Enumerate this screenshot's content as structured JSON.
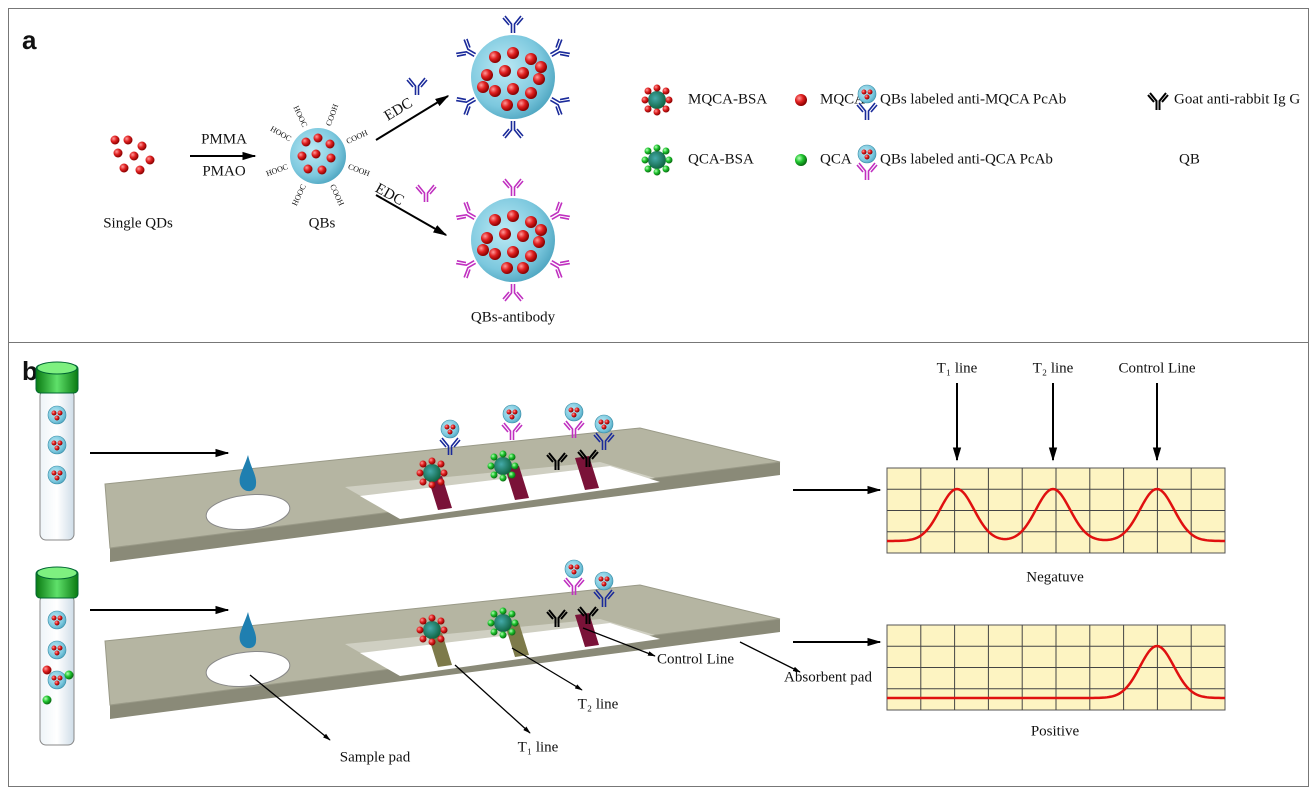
{
  "panel_a": {
    "label": "a",
    "single_qds": "Single QDs",
    "reagent_top": "PMMA",
    "reagent_bottom": "PMAO",
    "qbs": "QBs",
    "carboxyl_labels": [
      "HOOC",
      "HOOC",
      "COOH",
      "COOH",
      "COOH",
      "COOH",
      "HOOC",
      "HOOC"
    ],
    "edc_top": "EDC",
    "edc_bottom": "EDC",
    "qbs_antibody": "QBs-antibody",
    "legend": [
      "MQCA-BSA",
      "MQCA",
      "QBs labeled anti-MQCA PcAb",
      "Goat anti-rabbit Ig G",
      "QCA-BSA",
      "QCA",
      "QBs labeled anti-QCA PcAb",
      "QB"
    ]
  },
  "panel_b": {
    "label": "b",
    "graph_labels": [
      "T₁ line",
      "T₂ line",
      "Control Line"
    ],
    "negative": "Negatuve",
    "positive": "Positive",
    "strip_labels": {
      "absorbent_pad": "Absorbent pad",
      "control_line": "Control Line",
      "t2_line": "T₂ line",
      "t1_line": "T₁ line",
      "sample_pad": "Sample pad"
    }
  }
}
